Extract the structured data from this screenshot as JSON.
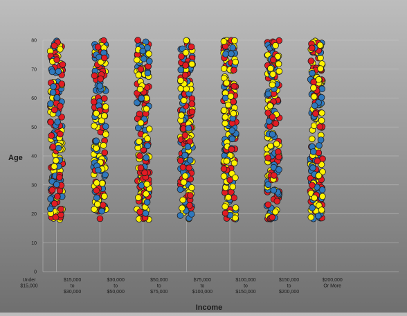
{
  "chart_data": {
    "type": "scatter",
    "title": "",
    "xlabel": "Income",
    "ylabel": "Age",
    "ylim": [
      0,
      80
    ],
    "yticks": [
      0,
      10,
      20,
      30,
      40,
      50,
      60,
      70,
      80
    ],
    "categories": [
      [
        "Under",
        "$15,000"
      ],
      [
        "$15,000",
        "to",
        "$30,000"
      ],
      [
        "$30,000",
        "to",
        "$50,000"
      ],
      [
        "$50,000",
        "to",
        "$75,000"
      ],
      [
        "$75,000",
        "to",
        "$100,000"
      ],
      [
        "$100,000",
        "to",
        "$150,000"
      ],
      [
        "$150,000",
        "to",
        "$200,000"
      ],
      [
        "$200,000",
        "Or More"
      ]
    ],
    "point_categories": [
      "$15,000 to $30,000",
      "$30,000 to $50,000",
      "$50,000 to $75,000",
      "$75,000 to $100,000",
      "$100,000 to $150,000",
      "$150,000 to $200,000",
      "$200,000 Or More"
    ],
    "age_range": [
      18,
      80
    ],
    "series_colors": [
      "#e21b23",
      "#fff200",
      "#2e78bd"
    ],
    "grid": true,
    "legend": "none"
  }
}
